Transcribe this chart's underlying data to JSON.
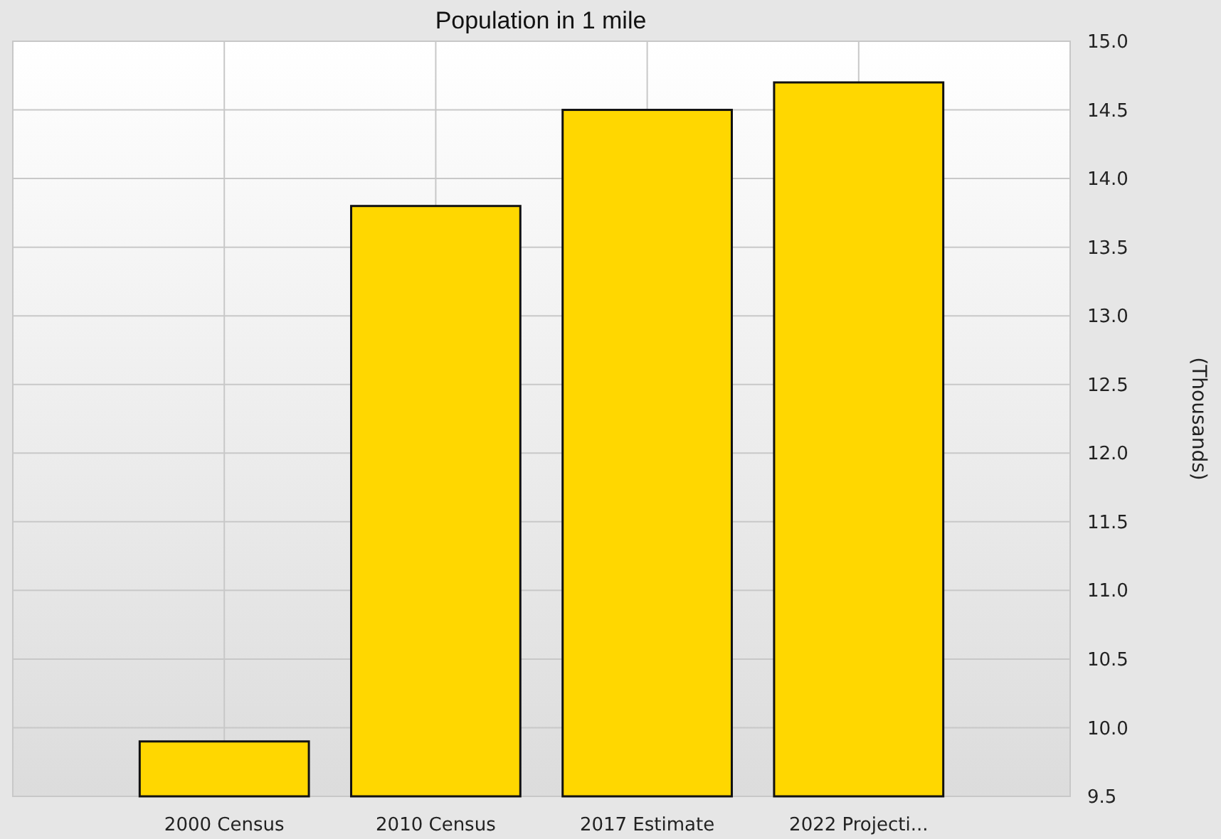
{
  "chart_data": {
    "type": "bar",
    "title": "Population in 1 mile",
    "ylabel": "(Thousands)",
    "categories": [
      "2000 Census",
      "2010 Census",
      "2017 Estimate",
      "2022 Projecti..."
    ],
    "values": [
      9.9,
      13.8,
      14.5,
      14.7
    ],
    "color": "#ffd700",
    "ylim": [
      9.5,
      15.0
    ],
    "yticks": [
      {
        "value": 9.5,
        "label": "9.5"
      },
      {
        "value": 10,
        "label": "10.0"
      },
      {
        "value": 10.5,
        "label": "10.5"
      },
      {
        "value": 11,
        "label": "11.0"
      },
      {
        "value": 11.5,
        "label": "11.5"
      },
      {
        "value": 12,
        "label": "12.0"
      },
      {
        "value": 12.5,
        "label": "12.5"
      },
      {
        "value": 13,
        "label": "13.0"
      },
      {
        "value": 13.5,
        "label": "13.5"
      },
      {
        "value": 14,
        "label": "14.0"
      },
      {
        "value": 14.5,
        "label": "14.5"
      },
      {
        "value": 15,
        "label": "15.0"
      }
    ],
    "grid": true
  }
}
